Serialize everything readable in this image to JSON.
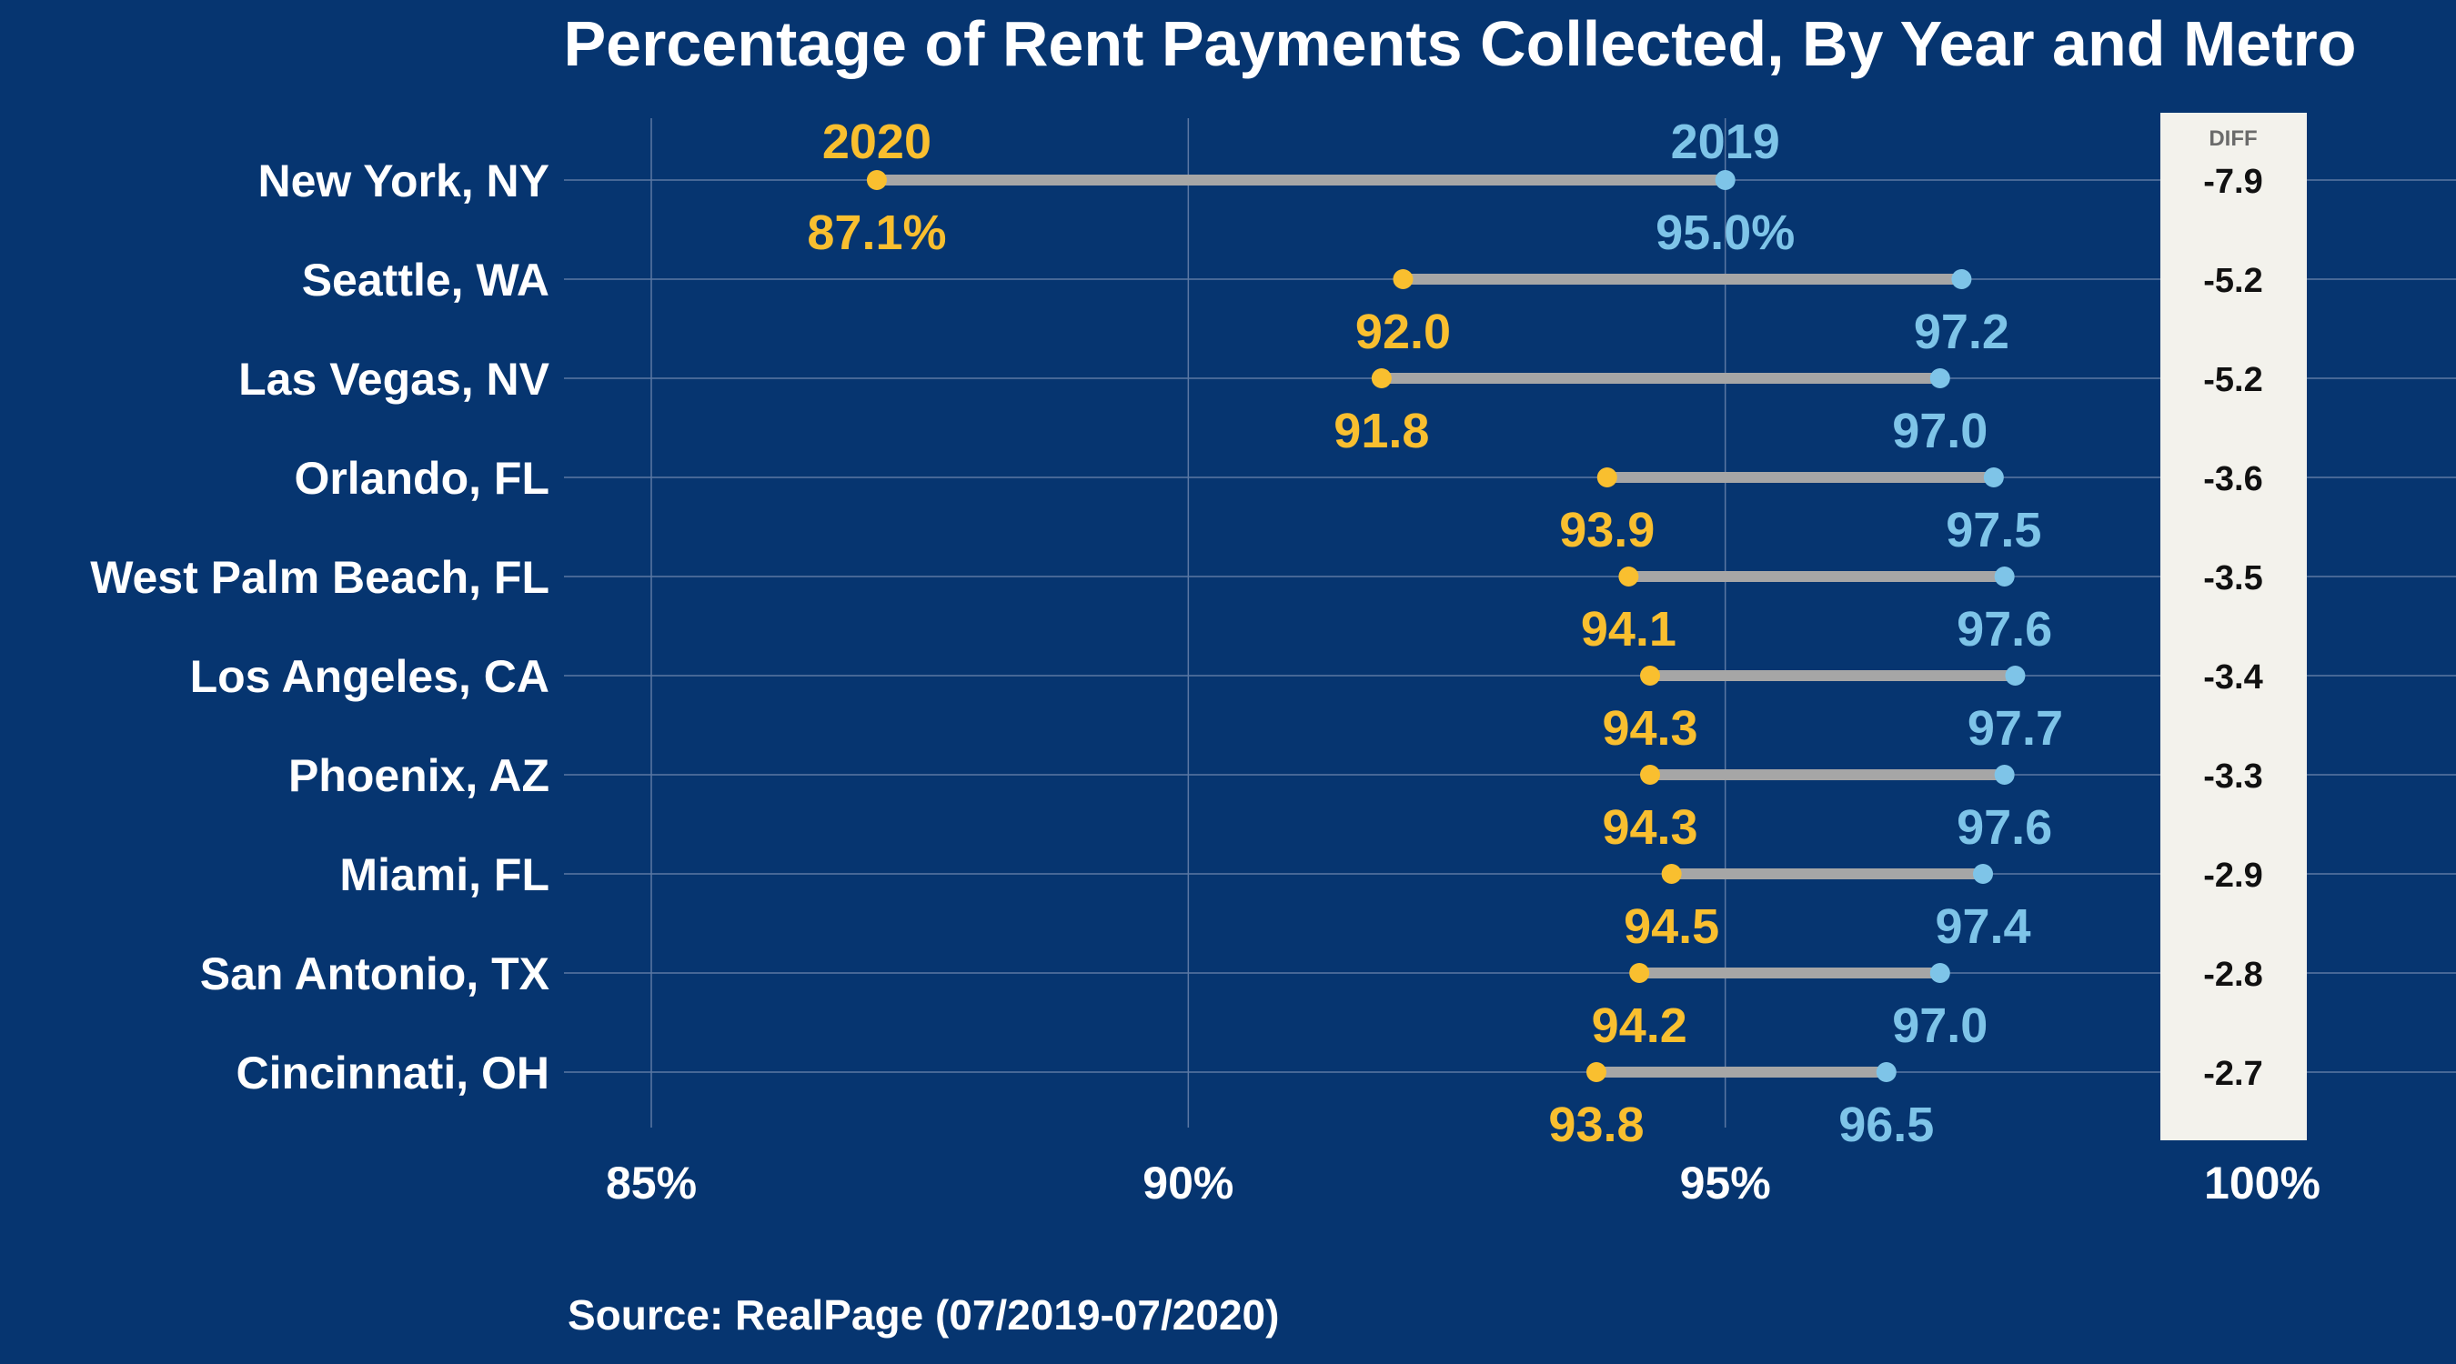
{
  "chart_data": {
    "type": "dumbbell",
    "title": "Percentage of Rent Payments Collected, By Year and Metro",
    "source": "Source: RealPage (07/2019-07/2020)",
    "x_ticks": [
      "85%",
      "90%",
      "95%",
      "100%"
    ],
    "xlim": [
      85,
      100
    ],
    "series": [
      {
        "name": "2020",
        "color": "#f9bf2f"
      },
      {
        "name": "2019",
        "color": "#7ec4e8"
      }
    ],
    "diff_header": "DIFF",
    "colors": {
      "background": "#063570",
      "grid": "#5b78a3",
      "connector": "#a6a6a6",
      "diff_panel": "#f3f2ec"
    },
    "rows": [
      {
        "metro": "New York, NY",
        "v2020": 87.1,
        "v2019": 95.0,
        "label2020": "87.1%",
        "label2019": "95.0%",
        "diff": "-7.9"
      },
      {
        "metro": "Seattle, WA",
        "v2020": 92.0,
        "v2019": 97.2,
        "label2020": "92.0",
        "label2019": "97.2",
        "diff": "-5.2"
      },
      {
        "metro": "Las Vegas, NV",
        "v2020": 91.8,
        "v2019": 97.0,
        "label2020": "91.8",
        "label2019": "97.0",
        "diff": "-5.2"
      },
      {
        "metro": "Orlando, FL",
        "v2020": 93.9,
        "v2019": 97.5,
        "label2020": "93.9",
        "label2019": "97.5",
        "diff": "-3.6"
      },
      {
        "metro": "West Palm Beach, FL",
        "v2020": 94.1,
        "v2019": 97.6,
        "label2020": "94.1",
        "label2019": "97.6",
        "diff": "-3.5"
      },
      {
        "metro": "Los Angeles, CA",
        "v2020": 94.3,
        "v2019": 97.7,
        "label2020": "94.3",
        "label2019": "97.7",
        "diff": "-3.4"
      },
      {
        "metro": "Phoenix, AZ",
        "v2020": 94.3,
        "v2019": 97.6,
        "label2020": "94.3",
        "label2019": "97.6",
        "diff": "-3.3"
      },
      {
        "metro": "Miami, FL",
        "v2020": 94.5,
        "v2019": 97.4,
        "label2020": "94.5",
        "label2019": "97.4",
        "diff": "-2.9"
      },
      {
        "metro": "San Antonio, TX",
        "v2020": 94.2,
        "v2019": 97.0,
        "label2020": "94.2",
        "label2019": "97.0",
        "diff": "-2.8"
      },
      {
        "metro": "Cincinnati, OH",
        "v2020": 93.8,
        "v2019": 96.5,
        "label2020": "93.8",
        "label2019": "96.5",
        "diff": "-2.7"
      }
    ]
  }
}
